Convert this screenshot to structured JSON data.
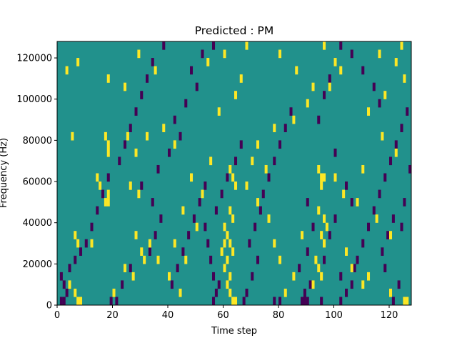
{
  "chart_data": {
    "type": "heatmap",
    "title": "Predicted : PM",
    "xlabel": "Time step",
    "ylabel": "Frequency (Hz)",
    "xlim": [
      0,
      128
    ],
    "ylim": [
      0,
      128000
    ],
    "xticks": [
      0,
      20,
      40,
      60,
      80,
      100,
      120
    ],
    "yticks": [
      0,
      20000,
      40000,
      60000,
      80000,
      100000,
      120000
    ],
    "grid": false,
    "legend": "none",
    "n_time_steps": 128,
    "n_freq_bins": 32,
    "bin_height_hz": 4000,
    "colors": {
      "background": "#21918c",
      "high": "#fde725",
      "low": "#440154"
    },
    "cells_high": [
      [
        3,
        112000
      ],
      [
        7,
        116000
      ],
      [
        18,
        108000
      ],
      [
        24,
        104000
      ],
      [
        29,
        120000
      ],
      [
        35,
        112000
      ],
      [
        5,
        80000
      ],
      [
        17,
        80000
      ],
      [
        18,
        76000
      ],
      [
        18,
        72000
      ],
      [
        25,
        80000
      ],
      [
        32,
        80000
      ],
      [
        28,
        72000
      ],
      [
        14,
        60000
      ],
      [
        15,
        56000
      ],
      [
        18,
        52000
      ],
      [
        18,
        48000
      ],
      [
        17,
        48000
      ],
      [
        26,
        56000
      ],
      [
        29,
        52000
      ],
      [
        6,
        32000
      ],
      [
        7,
        28000
      ],
      [
        12,
        28000
      ],
      [
        28,
        32000
      ],
      [
        30,
        24000
      ],
      [
        33,
        28000
      ],
      [
        36,
        20000
      ],
      [
        4,
        8000
      ],
      [
        6,
        4000
      ],
      [
        7,
        0
      ],
      [
        8,
        0
      ],
      [
        20,
        4000
      ],
      [
        24,
        16000
      ],
      [
        27,
        12000
      ],
      [
        31,
        20000
      ],
      [
        62,
        64000
      ],
      [
        63,
        60000
      ],
      [
        64,
        56000
      ],
      [
        62,
        44000
      ],
      [
        63,
        40000
      ],
      [
        60,
        36000
      ],
      [
        61,
        32000
      ],
      [
        62,
        28000
      ],
      [
        63,
        24000
      ],
      [
        61,
        20000
      ],
      [
        60,
        16000
      ],
      [
        62,
        12000
      ],
      [
        61,
        8000
      ],
      [
        62,
        4000
      ],
      [
        63,
        0
      ],
      [
        64,
        0
      ],
      [
        60,
        28000
      ],
      [
        59,
        24000
      ],
      [
        94,
        64000
      ],
      [
        95,
        60000
      ],
      [
        96,
        60000
      ],
      [
        95,
        56000
      ],
      [
        94,
        44000
      ],
      [
        96,
        40000
      ],
      [
        97,
        36000
      ],
      [
        95,
        32000
      ],
      [
        96,
        28000
      ],
      [
        93,
        20000
      ],
      [
        94,
        16000
      ],
      [
        95,
        12000
      ],
      [
        92,
        8000
      ],
      [
        82,
        4000
      ],
      [
        85,
        12000
      ],
      [
        80,
        20000
      ],
      [
        78,
        28000
      ],
      [
        88,
        32000
      ],
      [
        104,
        24000
      ],
      [
        106,
        16000
      ],
      [
        110,
        8000
      ],
      [
        112,
        12000
      ],
      [
        120,
        4000
      ],
      [
        125,
        0
      ],
      [
        126,
        0
      ],
      [
        115,
        40000
      ],
      [
        120,
        32000
      ],
      [
        108,
        48000
      ],
      [
        103,
        52000
      ],
      [
        100,
        60000
      ],
      [
        110,
        64000
      ],
      [
        122,
        72000
      ],
      [
        117,
        80000
      ],
      [
        112,
        92000
      ],
      [
        118,
        100000
      ],
      [
        125,
        108000
      ],
      [
        122,
        116000
      ],
      [
        116,
        120000
      ],
      [
        124,
        124000
      ],
      [
        96,
        124000
      ],
      [
        100,
        116000
      ],
      [
        102,
        112000
      ],
      [
        98,
        104000
      ],
      [
        90,
        96000
      ],
      [
        85,
        88000
      ],
      [
        78,
        84000
      ],
      [
        72,
        76000
      ],
      [
        70,
        68000
      ],
      [
        75,
        64000
      ],
      [
        68,
        56000
      ],
      [
        72,
        48000
      ],
      [
        76,
        40000
      ],
      [
        44,
        4000
      ],
      [
        40,
        12000
      ],
      [
        46,
        20000
      ],
      [
        42,
        28000
      ],
      [
        50,
        36000
      ],
      [
        45,
        44000
      ],
      [
        52,
        52000
      ],
      [
        48,
        60000
      ],
      [
        55,
        68000
      ],
      [
        42,
        76000
      ],
      [
        38,
        84000
      ],
      [
        58,
        92000
      ],
      [
        64,
        100000
      ],
      [
        66,
        108000
      ],
      [
        54,
        116000
      ],
      [
        60,
        120000
      ],
      [
        68,
        124000
      ],
      [
        80,
        120000
      ],
      [
        86,
        112000
      ],
      [
        92,
        104000
      ]
    ],
    "cells_low": [
      [
        1,
        12000
      ],
      [
        2,
        8000
      ],
      [
        3,
        4000
      ],
      [
        1,
        0
      ],
      [
        2,
        0
      ],
      [
        4,
        16000
      ],
      [
        6,
        20000
      ],
      [
        8,
        24000
      ],
      [
        10,
        28000
      ],
      [
        12,
        36000
      ],
      [
        14,
        44000
      ],
      [
        16,
        52000
      ],
      [
        18,
        60000
      ],
      [
        22,
        68000
      ],
      [
        24,
        76000
      ],
      [
        26,
        84000
      ],
      [
        21,
        0
      ],
      [
        19,
        0
      ],
      [
        23,
        8000
      ],
      [
        26,
        16000
      ],
      [
        33,
        24000
      ],
      [
        35,
        32000
      ],
      [
        37,
        40000
      ],
      [
        34,
        48000
      ],
      [
        30,
        56000
      ],
      [
        36,
        64000
      ],
      [
        40,
        72000
      ],
      [
        44,
        80000
      ],
      [
        42,
        88000
      ],
      [
        46,
        96000
      ],
      [
        50,
        104000
      ],
      [
        48,
        112000
      ],
      [
        52,
        120000
      ],
      [
        56,
        124000
      ],
      [
        56,
        0
      ],
      [
        57,
        4000
      ],
      [
        58,
        8000
      ],
      [
        56,
        12000
      ],
      [
        55,
        20000
      ],
      [
        54,
        28000
      ],
      [
        53,
        36000
      ],
      [
        57,
        44000
      ],
      [
        59,
        52000
      ],
      [
        61,
        60000
      ],
      [
        64,
        68000
      ],
      [
        66,
        76000
      ],
      [
        67,
        0
      ],
      [
        68,
        4000
      ],
      [
        70,
        12000
      ],
      [
        72,
        20000
      ],
      [
        69,
        28000
      ],
      [
        71,
        36000
      ],
      [
        73,
        44000
      ],
      [
        74,
        52000
      ],
      [
        76,
        60000
      ],
      [
        78,
        68000
      ],
      [
        80,
        76000
      ],
      [
        82,
        84000
      ],
      [
        84,
        92000
      ],
      [
        78,
        0
      ],
      [
        80,
        0
      ],
      [
        88,
        0
      ],
      [
        89,
        0
      ],
      [
        90,
        0
      ],
      [
        89,
        4000
      ],
      [
        91,
        8000
      ],
      [
        87,
        16000
      ],
      [
        90,
        24000
      ],
      [
        92,
        36000
      ],
      [
        90,
        48000
      ],
      [
        95,
        0
      ],
      [
        102,
        0
      ],
      [
        104,
        4000
      ],
      [
        106,
        8000
      ],
      [
        107,
        16000
      ],
      [
        108,
        20000
      ],
      [
        110,
        28000
      ],
      [
        112,
        36000
      ],
      [
        114,
        44000
      ],
      [
        116,
        52000
      ],
      [
        118,
        60000
      ],
      [
        120,
        68000
      ],
      [
        122,
        76000
      ],
      [
        124,
        84000
      ],
      [
        121,
        0
      ],
      [
        123,
        8000
      ],
      [
        118,
        16000
      ],
      [
        117,
        24000
      ],
      [
        119,
        32000
      ],
      [
        121,
        40000
      ],
      [
        116,
        96000
      ],
      [
        114,
        104000
      ],
      [
        110,
        112000
      ],
      [
        106,
        120000
      ],
      [
        102,
        124000
      ],
      [
        98,
        108000
      ],
      [
        96,
        100000
      ],
      [
        94,
        88000
      ],
      [
        100,
        72000
      ],
      [
        104,
        56000
      ],
      [
        106,
        48000
      ],
      [
        100,
        40000
      ],
      [
        98,
        32000
      ],
      [
        96,
        20000
      ],
      [
        102,
        12000
      ],
      [
        28,
        92000
      ],
      [
        30,
        100000
      ],
      [
        32,
        108000
      ],
      [
        34,
        116000
      ],
      [
        38,
        124000
      ],
      [
        41,
        8000
      ],
      [
        43,
        16000
      ],
      [
        45,
        24000
      ],
      [
        47,
        32000
      ],
      [
        49,
        40000
      ],
      [
        51,
        48000
      ],
      [
        53,
        56000
      ],
      [
        126,
        92000
      ],
      [
        127,
        64000
      ],
      [
        125,
        48000
      ],
      [
        124,
        36000
      ]
    ]
  }
}
